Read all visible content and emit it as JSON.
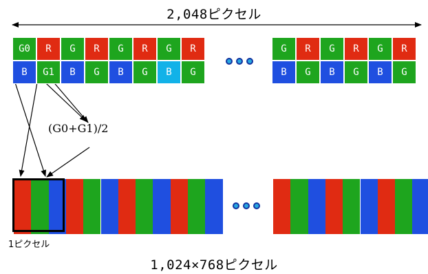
{
  "top_label": "2,048ピクセル",
  "bottom_label": "1,024×768ピクセル",
  "formula": "(G0+G1)/2",
  "pixel_label": "1ピクセル",
  "sensor": {
    "left_block": {
      "row1": [
        "G0",
        "R",
        "G",
        "R",
        "G",
        "R",
        "G",
        "R"
      ],
      "row2": [
        "B",
        "G1",
        "B",
        "G",
        "B",
        "G",
        "B",
        "G"
      ]
    },
    "right_block": {
      "row1": [
        "G",
        "R",
        "G",
        "R",
        "G",
        "R"
      ],
      "row2": [
        "B",
        "G",
        "B",
        "G",
        "B",
        "G"
      ]
    }
  },
  "output_left_colors": [
    "R",
    "G",
    "B",
    "R",
    "G",
    "B",
    "R",
    "G",
    "B",
    "R",
    "G",
    "B"
  ],
  "output_right_colors": [
    "R",
    "G",
    "B",
    "R",
    "G",
    "B",
    "R",
    "G",
    "B"
  ],
  "colors": {
    "R": "#e02b12",
    "G": "#1ea51e",
    "B": "#1f4fe0",
    "B_highlight": "#12b2e8",
    "dot": "#28a8e0"
  }
}
